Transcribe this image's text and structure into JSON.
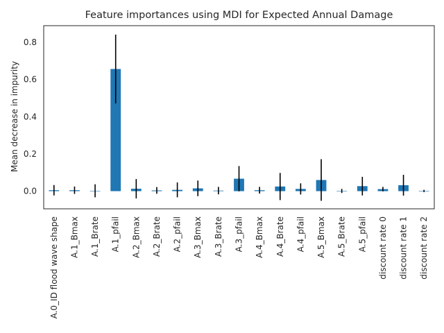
{
  "chart_data": {
    "type": "bar",
    "title": "Feature importances using MDI for Expected Annual Damage",
    "xlabel": "",
    "ylabel": "Mean decrease in impurity",
    "ylim": [
      -0.095,
      0.89
    ],
    "yticks": [
      0.0,
      0.2,
      0.4,
      0.6,
      0.8
    ],
    "ytick_labels": [
      "0.0",
      "0.2",
      "0.4",
      "0.6",
      "0.8"
    ],
    "grid": false,
    "bar_color": "#1f77b4",
    "error_color": "#000000",
    "categories": [
      "A.0_ID flood wave shape",
      "A.1_Bmax",
      "A.1_Brate",
      "A.1_pfail",
      "A.2_Bmax",
      "A.2_Brate",
      "A.2_pfail",
      "A.3_Bmax",
      "A.3_Brate",
      "A.3_pfail",
      "A.4_Bmax",
      "A.4_Brate",
      "A.4_pfail",
      "A.5_Bmax",
      "A.5_Brate",
      "A.5_pfail",
      "discount rate 0",
      "discount rate 1",
      "discount rate 2"
    ],
    "values": [
      0.005,
      0.005,
      0.002,
      0.657,
      0.013,
      0.004,
      0.007,
      0.015,
      0.003,
      0.067,
      0.005,
      0.025,
      0.012,
      0.06,
      0.001,
      0.027,
      0.011,
      0.032,
      0.001
    ],
    "errors": [
      0.028,
      0.02,
      0.035,
      0.185,
      0.052,
      0.018,
      0.04,
      0.042,
      0.02,
      0.068,
      0.018,
      0.073,
      0.03,
      0.112,
      0.011,
      0.05,
      0.012,
      0.056,
      0.006
    ]
  }
}
